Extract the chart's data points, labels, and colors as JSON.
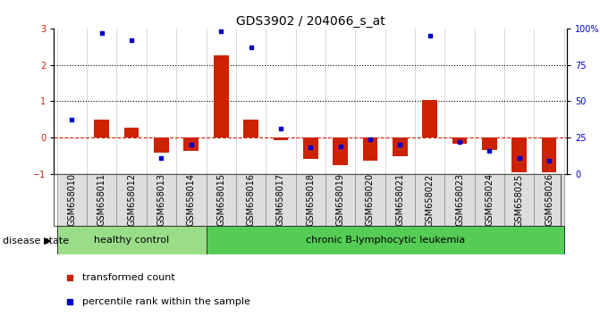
{
  "title": "GDS3902 / 204066_s_at",
  "samples": [
    "GSM658010",
    "GSM658011",
    "GSM658012",
    "GSM658013",
    "GSM658014",
    "GSM658015",
    "GSM658016",
    "GSM658017",
    "GSM658018",
    "GSM658019",
    "GSM658020",
    "GSM658021",
    "GSM658022",
    "GSM658023",
    "GSM658024",
    "GSM658025",
    "GSM658026"
  ],
  "transformed_count": [
    0.0,
    0.5,
    0.27,
    -0.42,
    -0.38,
    2.27,
    0.5,
    -0.07,
    -0.6,
    -0.75,
    -0.65,
    -0.52,
    1.02,
    -0.18,
    -0.35,
    -0.95,
    -0.95
  ],
  "percentile_rank": [
    37,
    97,
    92,
    11,
    20,
    98,
    87,
    31,
    18,
    19,
    24,
    20,
    95,
    22,
    16,
    11,
    9
  ],
  "healthy_control_count": 5,
  "disease_state_label": "disease state",
  "group1_label": "healthy control",
  "group2_label": "chronic B-lymphocytic leukemia",
  "legend1": "transformed count",
  "legend2": "percentile rank within the sample",
  "bar_color": "#cc2200",
  "dot_color": "#0000cc",
  "ylim_left": [
    -1,
    3
  ],
  "ylim_right": [
    0,
    100
  ],
  "yticks_left": [
    -1,
    0,
    1,
    2,
    3
  ],
  "yticks_right": [
    0,
    25,
    50,
    75,
    100
  ],
  "ytick_labels_right": [
    "0",
    "25",
    "50",
    "75",
    "100%"
  ],
  "hline_color": "#cc2200",
  "dotted_hlines": [
    1,
    2
  ],
  "bg_plot": "#ffffff",
  "bg_xticklabels": "#dddddd",
  "group1_color": "#99dd88",
  "group2_color": "#55cc55",
  "title_fontsize": 10,
  "tick_fontsize": 7,
  "bar_width": 0.5
}
